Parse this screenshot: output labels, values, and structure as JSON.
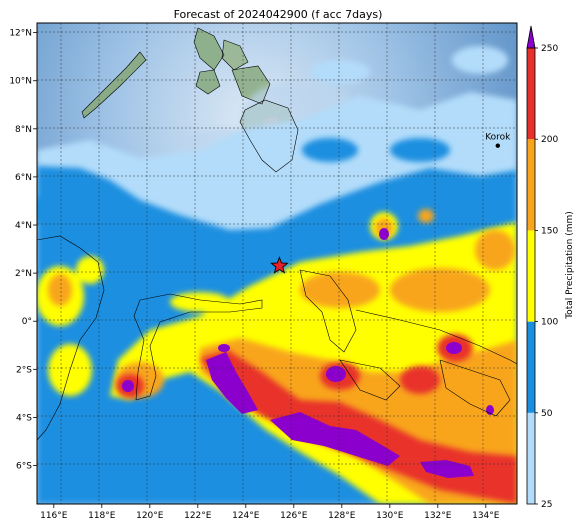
{
  "title": "Forecast of 2024042900 (f acc 7days)",
  "map": {
    "lon_ticks": [
      "116°E",
      "118°E",
      "120°E",
      "122°E",
      "124°E",
      "126°E",
      "128°E",
      "130°E",
      "132°E",
      "134°E"
    ],
    "lat_ticks": [
      "12°N",
      "10°N",
      "8°N",
      "6°N",
      "4°N",
      "2°N",
      "0°",
      "2°S",
      "4°S",
      "6°S"
    ],
    "lon_range": [
      115.3,
      135.3
    ],
    "lat_range": [
      -7.6,
      12.4
    ],
    "gridlines": true,
    "marker": {
      "type": "star",
      "lon": 125.4,
      "lat": 2.3,
      "color": "#e8202a"
    },
    "place": {
      "name": "Korok",
      "lon": 134.5,
      "lat": 7.3
    }
  },
  "colorbar": {
    "label": "Total Precipitation (mm)",
    "ticks": [
      "25",
      "50",
      "100",
      "150",
      "200",
      "250"
    ],
    "colors": [
      "#b3dcfa",
      "#1a8fe0",
      "#ffff00",
      "#f8a51d",
      "#e8302a",
      "#8b00cc"
    ],
    "extend": "max"
  }
}
